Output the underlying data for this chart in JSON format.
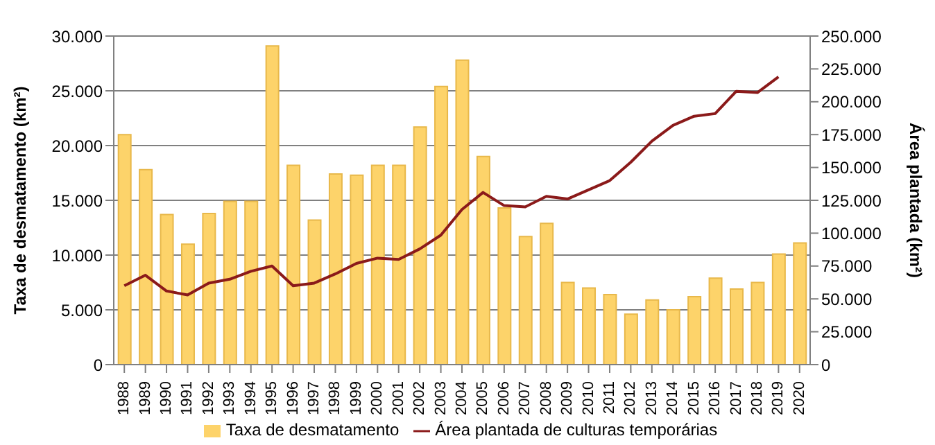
{
  "chart_data": {
    "type": "bar",
    "categories": [
      "1988",
      "1989",
      "1990",
      "1991",
      "1992",
      "1993",
      "1994",
      "1995",
      "1996",
      "1997",
      "1998",
      "1999",
      "2000",
      "2001",
      "2002",
      "2003",
      "2004",
      "2005",
      "2006",
      "2007",
      "2008",
      "2009",
      "2010",
      "2011",
      "2012",
      "2013",
      "2014",
      "2015",
      "2016",
      "2017",
      "2018",
      "2019",
      "2020"
    ],
    "ylabel": "Taxa de desmatamento (km²)",
    "y2label": "Área plantada (km²)",
    "ylim": [
      0,
      30000
    ],
    "yticks": [
      {
        "value": 0,
        "label": "0"
      },
      {
        "value": 5000,
        "label": "5.000"
      },
      {
        "value": 10000,
        "label": "10.000"
      },
      {
        "value": 15000,
        "label": "15.000"
      },
      {
        "value": 20000,
        "label": "20.000"
      },
      {
        "value": 25000,
        "label": "25.000"
      },
      {
        "value": 30000,
        "label": "30.000"
      }
    ],
    "y2lim": [
      0,
      250000
    ],
    "y2ticks": [
      {
        "value": 0,
        "label": "0"
      },
      {
        "value": 25000,
        "label": "25.000"
      },
      {
        "value": 50000,
        "label": "50.000"
      },
      {
        "value": 75000,
        "label": "75.000"
      },
      {
        "value": 100000,
        "label": "100.000"
      },
      {
        "value": 125000,
        "label": "125.000"
      },
      {
        "value": 150000,
        "label": "150.000"
      },
      {
        "value": 175000,
        "label": "175.000"
      },
      {
        "value": 200000,
        "label": "200.000"
      },
      {
        "value": 225000,
        "label": "225.000"
      },
      {
        "value": 250000,
        "label": "250.000"
      }
    ],
    "grid": "y",
    "legend": "bottom",
    "marker": "none",
    "series": [
      {
        "name": "Taxa de desmatamento",
        "color": "#fdd36a",
        "values": [
          21000,
          17800,
          13700,
          11000,
          13800,
          14900,
          14900,
          29100,
          18200,
          13200,
          17400,
          17300,
          18200,
          18200,
          21700,
          25400,
          27800,
          19000,
          14300,
          11700,
          12900,
          7500,
          7000,
          6400,
          4600,
          5900,
          5000,
          6200,
          7900,
          6900,
          7500,
          10100,
          11100
        ]
      },
      {
        "name": "Área plantada de culturas temporárias",
        "type": "line",
        "axis": "y2",
        "color": "#8b1a1a",
        "line_style": "solid",
        "values": [
          60000,
          68000,
          56000,
          53000,
          62000,
          65000,
          71000,
          75000,
          60000,
          62000,
          69000,
          77000,
          81000,
          80000,
          88000,
          98500,
          118000,
          131000,
          121000,
          120000,
          128000,
          126000,
          133000,
          140000,
          154000,
          170000,
          182000,
          189000,
          191000,
          208000,
          207000,
          219000,
          null
        ]
      }
    ]
  }
}
